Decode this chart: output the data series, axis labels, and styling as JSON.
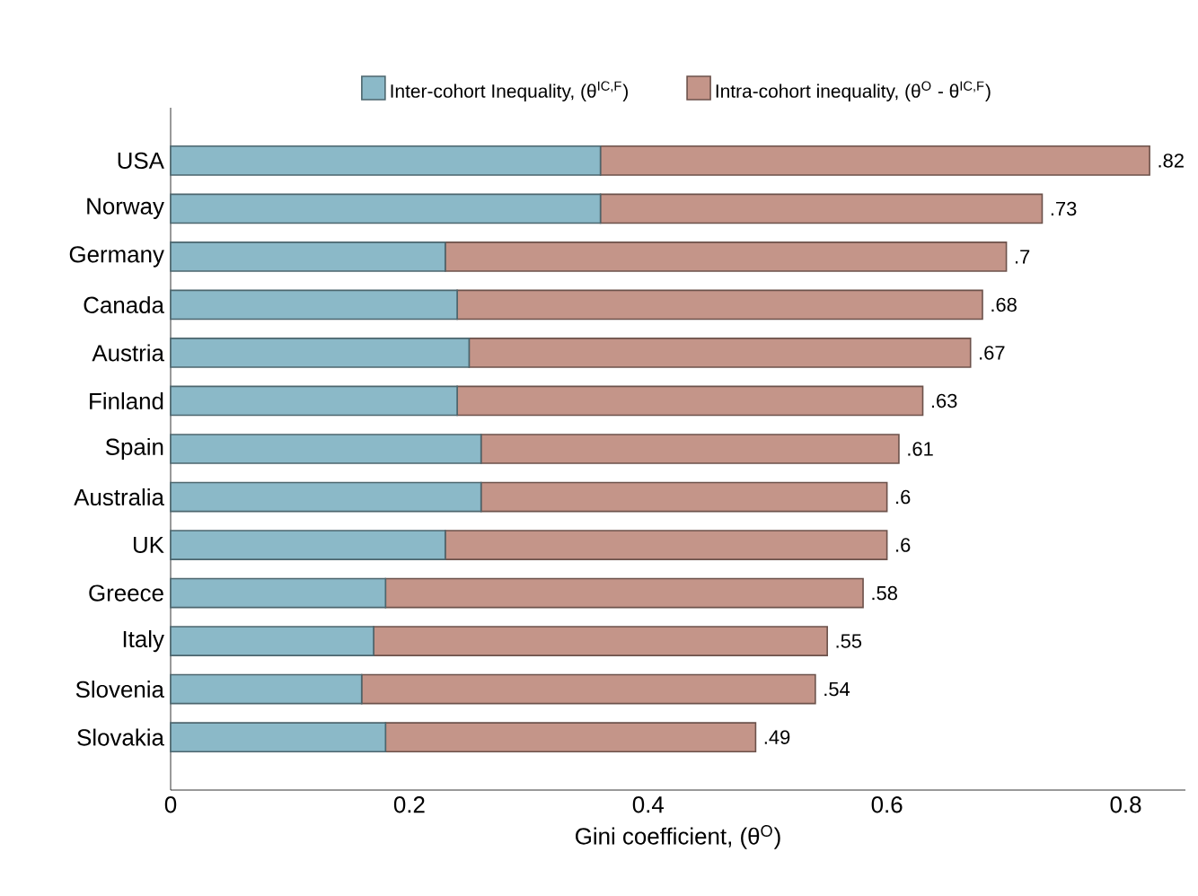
{
  "chart_data": {
    "type": "bar",
    "orientation": "horizontal",
    "stacked": true,
    "categories": [
      "USA",
      "Norway",
      "Germany",
      "Canada",
      "Austria",
      "Finland",
      "Spain",
      "Australia",
      "UK",
      "Greece",
      "Italy",
      "Slovenia",
      "Slovakia"
    ],
    "series": [
      {
        "name": "Inter-cohort Inequality, (θ$^{IC,F}$)",
        "color": "#8bb9c8",
        "values": [
          0.36,
          0.36,
          0.23,
          0.24,
          0.25,
          0.24,
          0.26,
          0.26,
          0.23,
          0.18,
          0.17,
          0.16,
          0.18
        ]
      },
      {
        "name": "Intra-cohort inequality, (θ$^{O}$ -  θ$^{IC,F}$)",
        "color": "#c49589",
        "values": [
          0.46,
          0.37,
          0.47,
          0.44,
          0.42,
          0.39,
          0.35,
          0.34,
          0.37,
          0.4,
          0.38,
          0.38,
          0.31
        ]
      }
    ],
    "totals": [
      ".82",
      ".73",
      ".7",
      ".68",
      ".67",
      ".63",
      ".61",
      ".6",
      ".6",
      ".58",
      ".55",
      ".54",
      ".49"
    ],
    "xlim": [
      0,
      0.85
    ],
    "xticks": [
      0,
      0.2,
      0.4,
      0.6,
      0.8
    ],
    "xlabel": "Gini coefficient, (θ$^{O}$)",
    "legend": "top",
    "grid": false
  }
}
